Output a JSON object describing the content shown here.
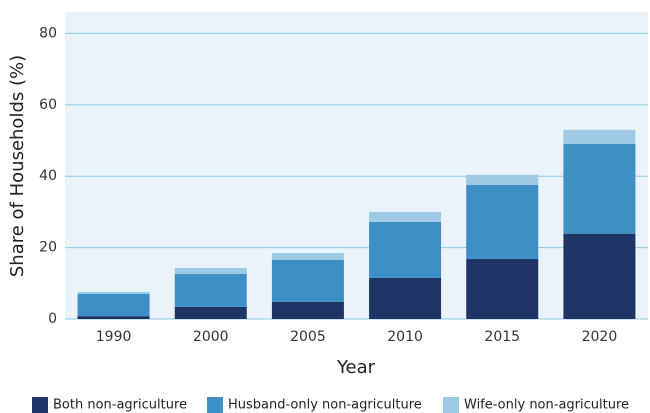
{
  "chart_data": {
    "type": "stacked_bar",
    "xlabel": "Year",
    "ylabel": "Share of Households (%)",
    "categories": [
      "1990",
      "2000",
      "2005",
      "2010",
      "2015",
      "2020"
    ],
    "series": [
      {
        "name": "Both non-agriculture",
        "color": "#1f3566",
        "values": [
          0.8,
          3.4,
          4.8,
          11.5,
          16.8,
          23.9
        ]
      },
      {
        "name": "Husband-only non-agriculture",
        "color": "#3d8fc6",
        "values": [
          6.2,
          9.2,
          11.8,
          15.7,
          20.8,
          25.2
        ]
      },
      {
        "name": "Wife-only non-agriculture",
        "color": "#9ecae6",
        "values": [
          0.6,
          1.7,
          1.9,
          2.8,
          2.8,
          3.9
        ]
      }
    ],
    "ylim": [
      0,
      86
    ],
    "yticks": [
      0,
      20,
      40,
      60,
      80
    ],
    "grid": true,
    "legend": "bottom"
  }
}
